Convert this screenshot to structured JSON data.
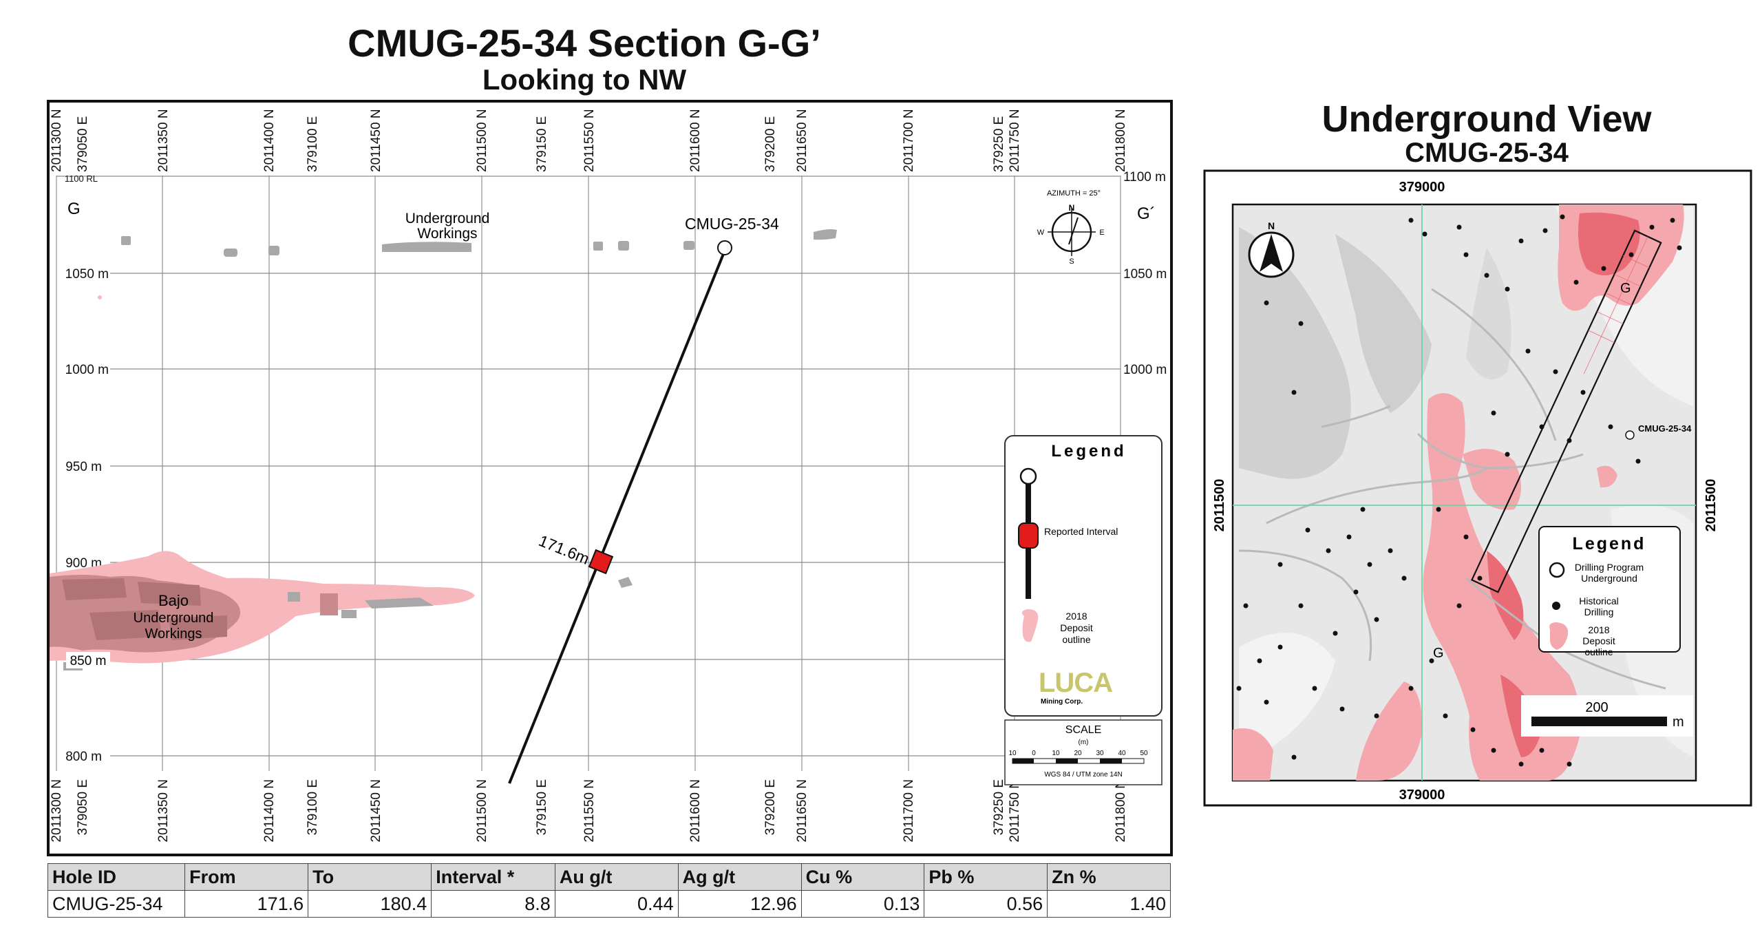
{
  "section": {
    "title": "CMUG-25-34 Section G-G’",
    "subtitle": "Looking to NW",
    "grid_labels": [
      "2011300 N",
      "379050 E",
      "2011350 N",
      "2011400 N",
      "379100 E",
      "2011450 N",
      "2011500 N",
      "379150 E",
      "2011550 N",
      "2011600 N",
      "379200 E",
      "2011650 N",
      "2011700 N",
      "379250 E",
      "2011750 N",
      "2011800 N"
    ],
    "elevation_labels": [
      "1100 m",
      "1050 m",
      "1000 m",
      "950 m",
      "900 m",
      "850 m",
      "800 m"
    ],
    "rl_label": "1100 RL",
    "g_left": "G",
    "g_right": "G´",
    "workings_label_1": "Underground",
    "workings_label_2": "Workings",
    "hole_label": "CMUG-25-34",
    "interval_label": "171.6m",
    "bajo_1": "Bajo",
    "bajo_2": "Underground",
    "bajo_3": "Workings",
    "compass": {
      "azimuth": "AZIMUTH = 25°",
      "n": "N",
      "s": "S",
      "e": "E",
      "w": "W"
    },
    "legend": {
      "title": "Legend",
      "reported_interval": "Reported Interval",
      "deposit_1": "2018",
      "deposit_2": "Deposit",
      "deposit_3": "outline",
      "logo": "LUCA",
      "logo_sub": "Mining Corp."
    },
    "scale": {
      "title": "SCALE",
      "unit": "(m)",
      "ticks": [
        "10",
        "0",
        "10",
        "20",
        "30",
        "40",
        "50"
      ],
      "datum": "WGS 84 / UTM zone 14N"
    }
  },
  "underground_view": {
    "title": "Underground View",
    "subtitle": "CMUG-25-34",
    "east_top": "379000",
    "east_bottom": "379000",
    "north_left": "2011500",
    "north_right": "2011500",
    "hole_label": "CMUG-25-34",
    "g_top": "G",
    "g_bottom": "G",
    "north_arrow": "N",
    "legend": {
      "title": "Legend",
      "drill_1": "Drilling Program",
      "drill_2": "Underground",
      "hist_1": "Historical",
      "hist_2": "Drilling",
      "dep_1": "2018",
      "dep_2": "Deposit",
      "dep_3": "outline"
    },
    "scale_value": "200",
    "scale_unit": "m"
  },
  "table": {
    "headers": [
      "Hole ID",
      "From",
      "To",
      "Interval *",
      "Au g/t",
      "Ag g/t",
      "Cu %",
      "Pb %",
      "Zn %"
    ],
    "rows": [
      [
        "CMUG-25-34",
        "171.6",
        "180.4",
        "8.8",
        "0.44",
        "12.96",
        "0.13",
        "0.56",
        "1.40"
      ]
    ]
  },
  "colors": {
    "deposit": "#f7b8bd",
    "workings": "#a8a8a8",
    "interval": "#e31b1b",
    "grid": "#9a9a9a",
    "map_grid": "#6fd3a8"
  }
}
